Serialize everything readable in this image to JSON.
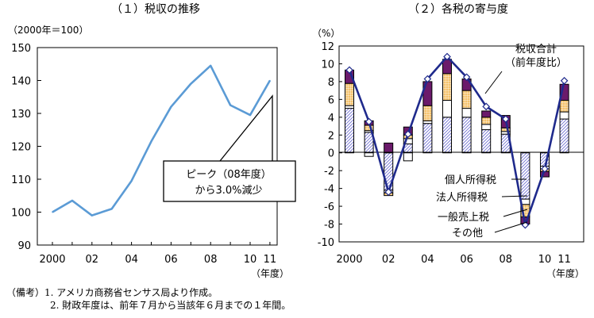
{
  "chart_data": [
    {
      "type": "line",
      "title": "（１）税収の推移",
      "unit_label": "（2000年＝100）",
      "xlabel": "（年度）",
      "x": [
        2000,
        2001,
        2002,
        2003,
        2004,
        2005,
        2006,
        2007,
        2008,
        2009,
        2010,
        2011
      ],
      "x_tick_labels": [
        "2000",
        "02",
        "04",
        "06",
        "08",
        "10",
        "11"
      ],
      "y_ticks": [
        90,
        100,
        110,
        120,
        130,
        140,
        150
      ],
      "ylim": [
        90,
        150
      ],
      "series": [
        {
          "values": [
            100,
            103.5,
            99,
            101,
            109.5,
            121.5,
            132,
            139,
            144.5,
            132.5,
            129.5,
            140
          ]
        }
      ],
      "annotation": {
        "line1": "ピーク（08年度）",
        "line2": "から3.0%減少"
      },
      "colors": {
        "line": "#5b9bd5"
      }
    },
    {
      "type": "bar",
      "stacked": true,
      "title": "（２）各税の寄与度",
      "unit_label": "（%）",
      "xlabel": "（年度）",
      "x": [
        2000,
        2001,
        2002,
        2003,
        2004,
        2005,
        2006,
        2007,
        2008,
        2009,
        2010,
        2011
      ],
      "x_tick_labels": [
        "2000",
        "02",
        "04",
        "06",
        "08",
        "10",
        "11"
      ],
      "y_ticks": [
        -10,
        -8,
        -6,
        -4,
        -2,
        0,
        2,
        4,
        6,
        8,
        10,
        12
      ],
      "ylim": [
        -10,
        12
      ],
      "series": [
        {
          "name": "個人所得税",
          "values": [
            5.0,
            2.3,
            -4.2,
            1.0,
            3.3,
            4.0,
            4.0,
            2.6,
            2.1,
            -5.2,
            -1.5,
            3.8
          ]
        },
        {
          "name": "法人所得税",
          "values": [
            0.3,
            0.2,
            -0.3,
            0.6,
            0.3,
            1.9,
            1.0,
            0.6,
            0.3,
            -0.6,
            -0.3,
            0.8
          ]
        },
        {
          "name": "一般売上税",
          "values": [
            2.5,
            0.6,
            -0.3,
            0.4,
            1.7,
            3.0,
            2.0,
            0.8,
            0.4,
            -1.4,
            -0.3,
            1.3
          ]
        },
        {
          "name": "その他",
          "values": [
            1.5,
            0.5,
            1.1,
            0.9,
            2.7,
            1.6,
            1.3,
            0.7,
            1.4,
            -0.8,
            -0.6,
            1.8
          ]
        }
      ],
      "negative_part": [
        0,
        -0.4,
        -1.0,
        -0.9,
        0,
        0,
        0,
        0,
        0,
        0,
        -0.5,
        0
      ],
      "total": {
        "name": "税収合計",
        "sub": "（前年度比）",
        "values": [
          9.3,
          3.5,
          -4.4,
          2.1,
          8.3,
          10.8,
          8.5,
          5.2,
          3.8,
          -8.1,
          -1.8,
          8.1
        ]
      },
      "colors": {
        "personal": "#a8a8e0",
        "corporate": "#ffffff",
        "sales": "#f5c26b",
        "other": "#6b1a6b",
        "total_line": "#1f2a8c"
      }
    }
  ],
  "notes": {
    "line1": "（備考）1. アメリカ商務省センサス局より作成。",
    "line2": "2. 財政年度は、前年７月から当該年６月までの１年間。"
  }
}
